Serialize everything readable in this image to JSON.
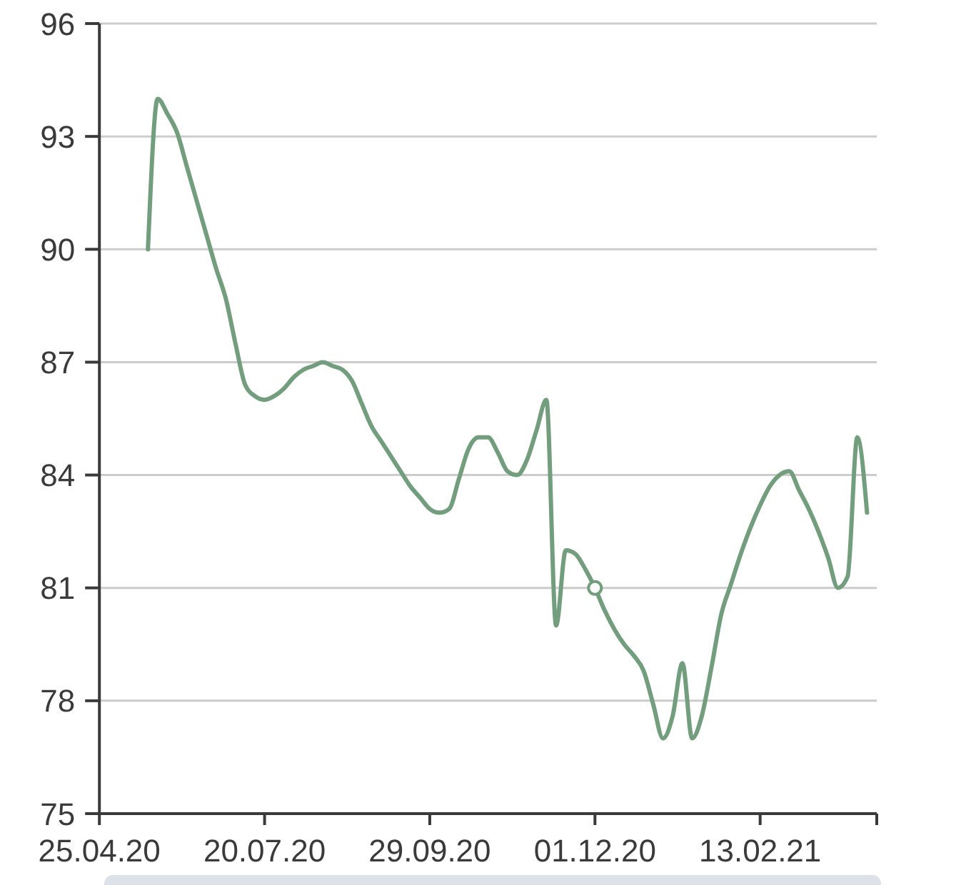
{
  "chart_data": {
    "type": "line",
    "categories": [
      "25.04.20",
      null,
      null,
      null,
      null,
      null,
      null,
      null,
      null,
      null,
      null,
      null,
      null,
      null,
      null,
      null,
      null,
      "20.07.20",
      null,
      null,
      null,
      null,
      null,
      null,
      null,
      null,
      null,
      null,
      null,
      null,
      null,
      null,
      null,
      null,
      "29.09.20",
      null,
      null,
      null,
      null,
      null,
      null,
      null,
      null,
      null,
      null,
      null,
      null,
      null,
      null,
      null,
      null,
      "01.12.20",
      null,
      null,
      null,
      null,
      null,
      null,
      null,
      null,
      null,
      null,
      null,
      null,
      null,
      null,
      null,
      null,
      "13.02.21",
      null,
      null,
      null,
      null,
      null,
      null,
      null,
      null,
      null,
      null,
      null,
      null
    ],
    "series": [
      {
        "color": "#729e7e",
        "values": [
          null,
          null,
          null,
          null,
          null,
          90,
          94,
          93.6,
          93.1,
          92.2,
          91.3,
          90.4,
          89.5,
          88.7,
          87.5,
          86.4,
          86.1,
          86,
          86.1,
          86.3,
          86.6,
          86.8,
          86.9,
          87,
          86.9,
          86.8,
          86.5,
          85.9,
          85.3,
          84.9,
          84.5,
          84.1,
          83.7,
          83.4,
          83.1,
          83,
          83.1,
          83.9,
          84.7,
          85,
          85,
          84.6,
          84.1,
          84,
          84.4,
          85.2,
          86,
          80,
          82,
          81.9,
          81.5,
          81,
          80.4,
          79.9,
          79.5,
          79.2,
          78.8,
          77.9,
          77,
          77.6,
          79,
          77,
          77.6,
          78.9,
          80.3,
          81.1,
          81.9,
          82.6,
          83.2,
          83.7,
          84,
          84.1,
          83.6,
          83.1,
          82.5,
          81.8,
          81,
          81.3,
          85,
          83,
          null
        ]
      },
      {
        "type": "scatter",
        "color": "#729e7e",
        "marker": "circle",
        "values": [
          null,
          null,
          null,
          null,
          null,
          null,
          null,
          null,
          null,
          null,
          null,
          null,
          null,
          null,
          null,
          null,
          null,
          null,
          null,
          null,
          null,
          null,
          null,
          null,
          null,
          null,
          null,
          null,
          null,
          null,
          null,
          null,
          null,
          null,
          null,
          null,
          null,
          null,
          null,
          null,
          null,
          null,
          null,
          null,
          null,
          null,
          null,
          null,
          null,
          null,
          null,
          81,
          null,
          null,
          null,
          null,
          null,
          null,
          null,
          null,
          null,
          null,
          null,
          null,
          null,
          null,
          null,
          null,
          null,
          null,
          null,
          null,
          null,
          null,
          null,
          null,
          null,
          null,
          null,
          null,
          null
        ]
      }
    ],
    "ylim": [
      75,
      96
    ],
    "yticks": [
      75,
      78,
      81,
      84,
      87,
      90,
      93,
      96
    ],
    "grid": "y",
    "line_style": "solid"
  }
}
